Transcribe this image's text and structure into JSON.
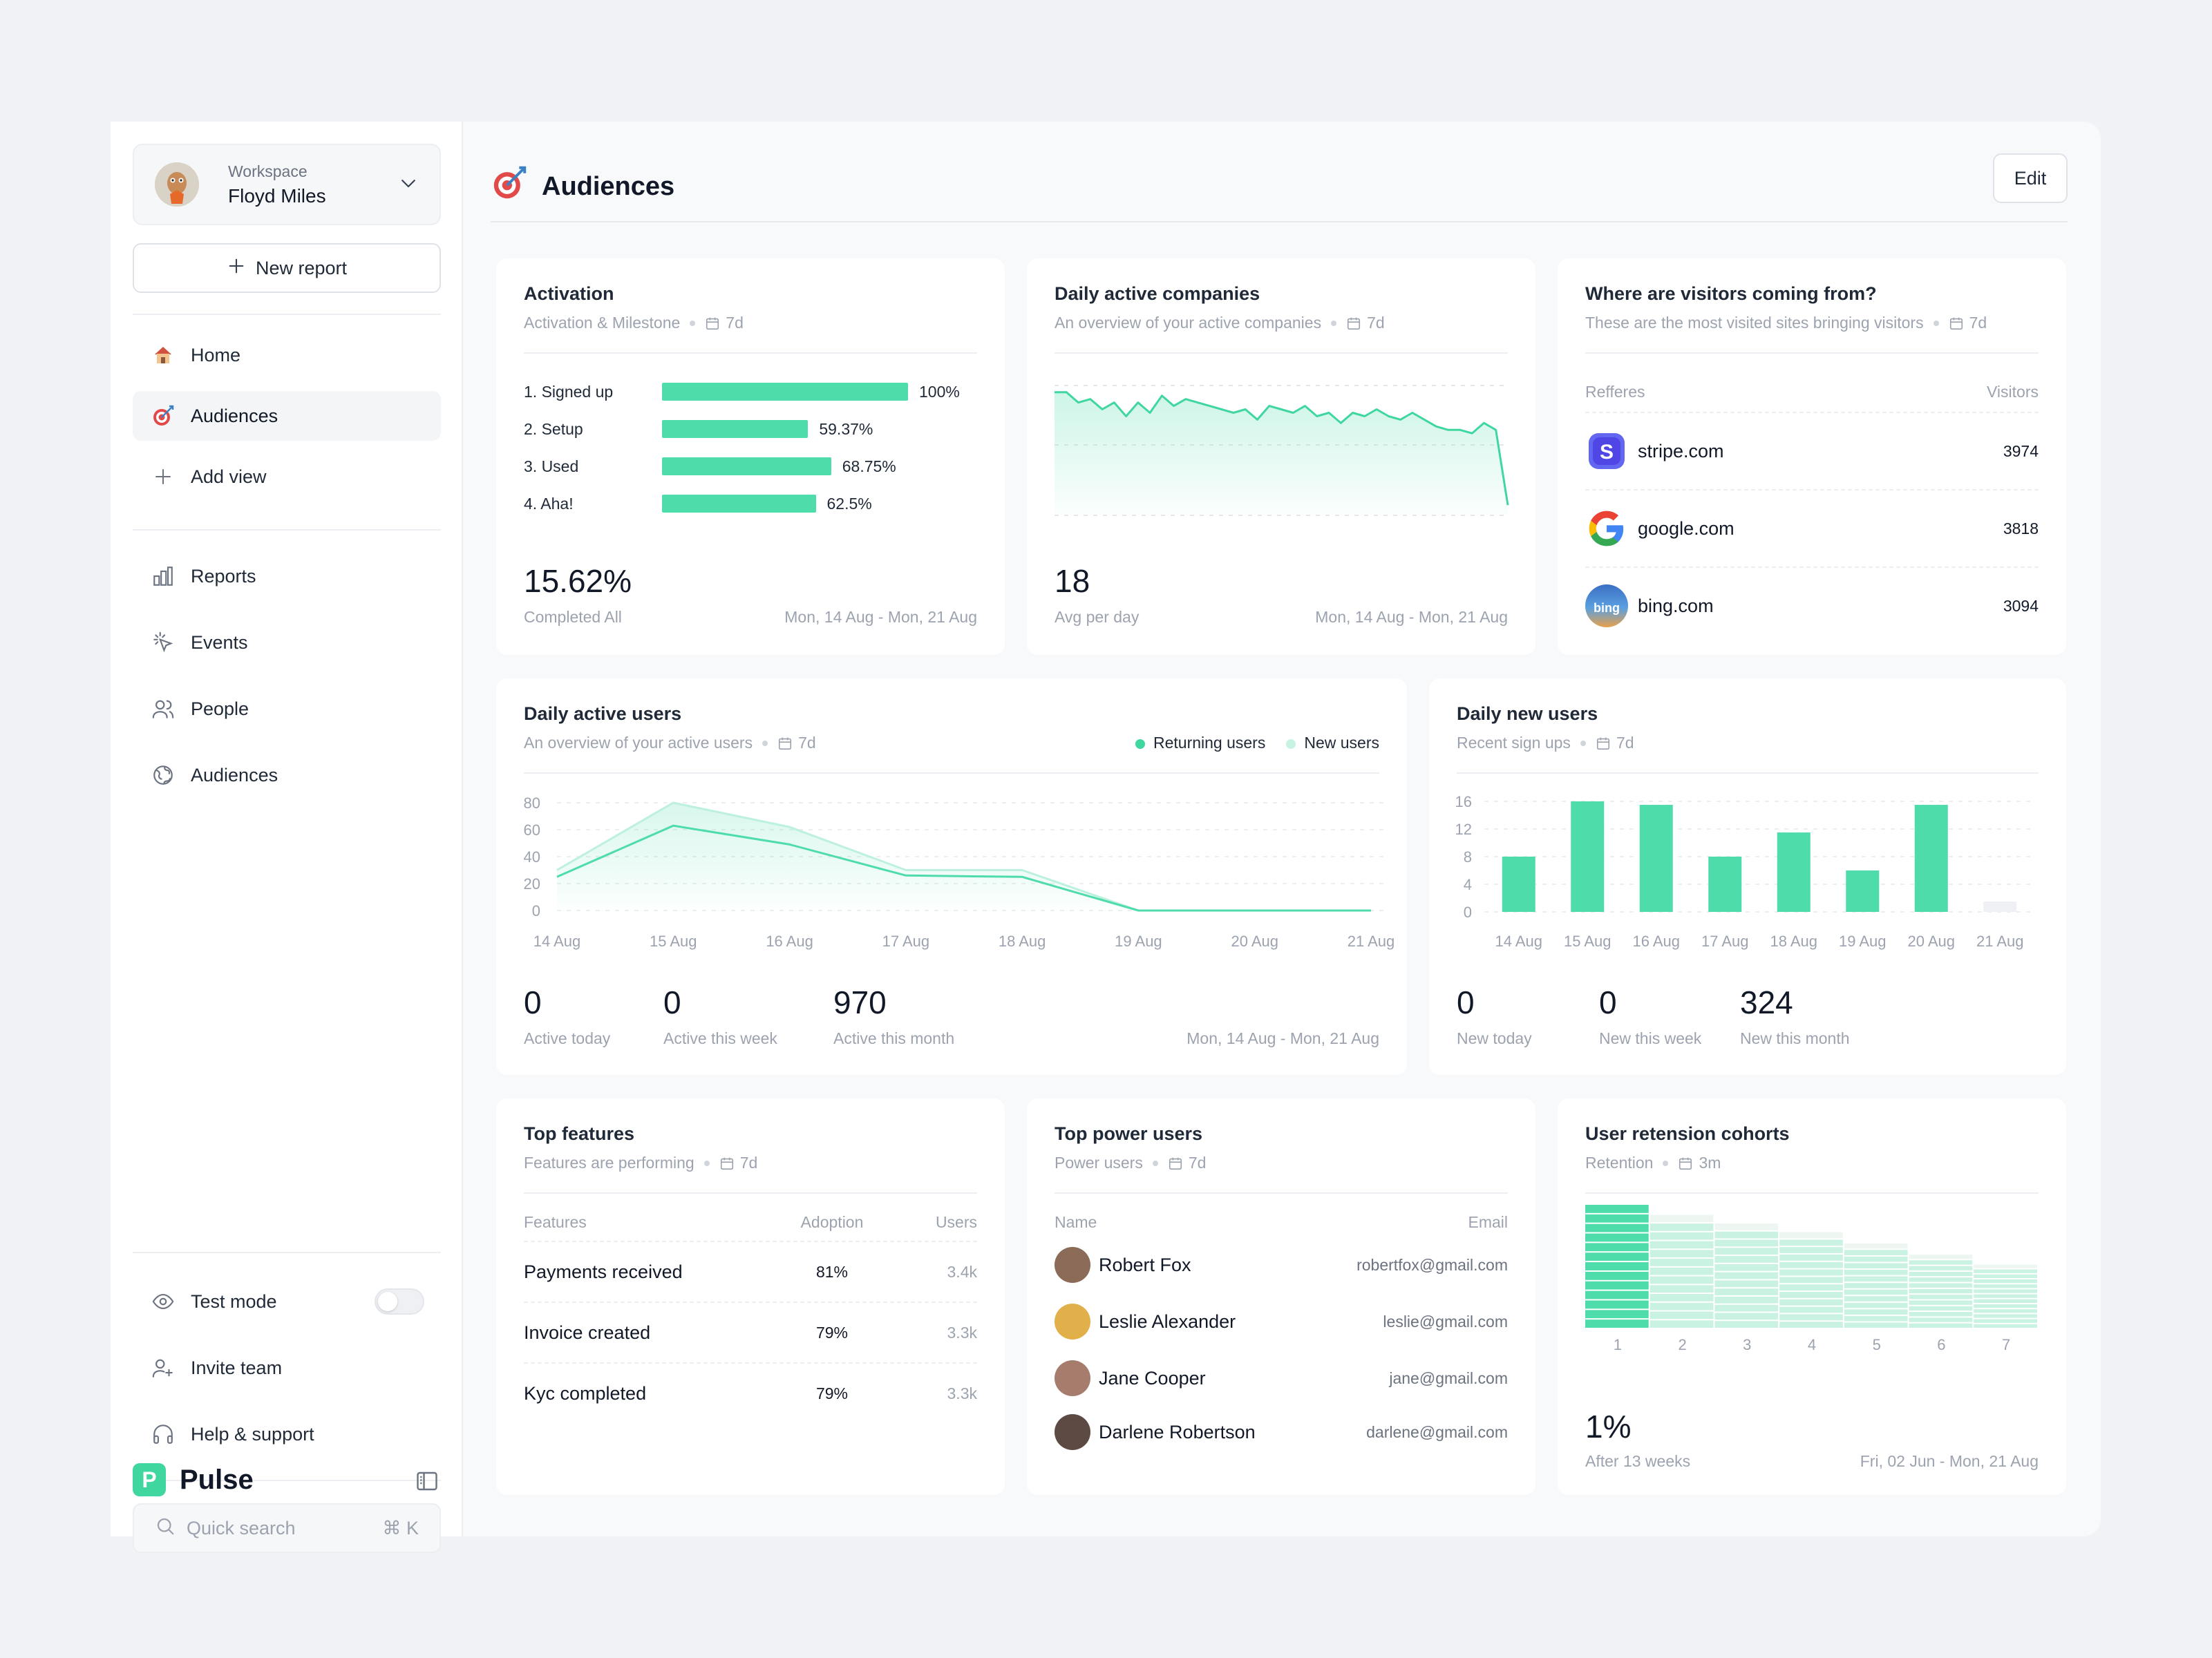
{
  "workspace": {
    "label": "Workspace",
    "name": "Floyd Miles"
  },
  "sidebar": {
    "new_report": "New report",
    "primary": [
      {
        "label": "Home",
        "icon": "home-icon"
      },
      {
        "label": "Audiences",
        "icon": "target-icon",
        "active": true
      },
      {
        "label": "Add view",
        "icon": "plus-icon"
      }
    ],
    "secondary": [
      {
        "label": "Reports",
        "icon": "bar-chart-icon"
      },
      {
        "label": "Events",
        "icon": "cursor-click-icon"
      },
      {
        "label": "People",
        "icon": "users-icon"
      },
      {
        "label": "Audiences",
        "icon": "globe-icon"
      }
    ],
    "footer": [
      {
        "label": "Test mode",
        "icon": "eye-icon"
      },
      {
        "label": "Invite team",
        "icon": "user-plus-icon"
      },
      {
        "label": "Help & support",
        "icon": "headphones-icon"
      }
    ],
    "search_placeholder": "Quick search",
    "search_shortcut": "⌘ K",
    "brand": "Pulse",
    "brand_letter": "P"
  },
  "header": {
    "title": "Audiences",
    "edit": "Edit"
  },
  "cards": {
    "activation": {
      "title": "Activation",
      "subtitle": "Activation & Milestone",
      "period": "7d",
      "steps": [
        {
          "label": "1.  Signed up",
          "value": 100,
          "text": "100%"
        },
        {
          "label": "2.  Setup",
          "value": 59.37,
          "text": "59.37%"
        },
        {
          "label": "3.  Used",
          "value": 68.75,
          "text": "68.75%"
        },
        {
          "label": "4.  Aha!",
          "value": 62.5,
          "text": "62.5%"
        }
      ],
      "big": "15.62%",
      "big_caption": "Completed All",
      "range": "Mon, 14 Aug - Mon, 21 Aug"
    },
    "companies": {
      "title": "Daily active companies",
      "subtitle": "An overview of your active companies",
      "period": "7d",
      "big": "18",
      "big_caption": "Avg per day",
      "range": "Mon, 14 Aug - Mon, 21 Aug"
    },
    "visitors": {
      "title": "Where are visitors coming from?",
      "subtitle": "These are the most visited sites bringing visitors",
      "period": "7d",
      "col_left": "Refferes",
      "col_right": "Visitors",
      "rows": [
        {
          "site": "stripe.com",
          "visitors": "3974",
          "icon": "stripe-logo-icon",
          "color": "#5b5bf5",
          "mark": "S"
        },
        {
          "site": "google.com",
          "visitors": "3818",
          "icon": "google-logo-icon",
          "color": "#ea4335",
          "mark": "G"
        },
        {
          "site": "bing.com",
          "visitors": "3094",
          "icon": "bing-logo-icon",
          "color": "#3b82c4",
          "mark": "bing"
        }
      ]
    },
    "dau": {
      "title": "Daily active users",
      "subtitle": "An overview of your active users",
      "period": "7d",
      "legend": [
        "Returning users",
        "New users"
      ],
      "stats": [
        {
          "value": "0",
          "label": "Active today"
        },
        {
          "value": "0",
          "label": "Active this week"
        },
        {
          "value": "970",
          "label": "Active this month"
        }
      ],
      "range": "Mon, 14 Aug - Mon, 21 Aug"
    },
    "dnu": {
      "title": "Daily new users",
      "subtitle": "Recent sign ups",
      "period": "7d",
      "stats": [
        {
          "value": "0",
          "label": "New today"
        },
        {
          "value": "0",
          "label": "New this week"
        },
        {
          "value": "324",
          "label": "New this month"
        }
      ]
    },
    "features": {
      "title": "Top features",
      "subtitle": "Features are performing",
      "period": "7d",
      "cols": [
        "Features",
        "Adoption",
        "Users"
      ],
      "rows": [
        {
          "name": "Payments received",
          "adoption": "81%",
          "users": "3.4k"
        },
        {
          "name": "Invoice created",
          "adoption": "79%",
          "users": "3.3k"
        },
        {
          "name": "Kyc completed",
          "adoption": "79%",
          "users": "3.3k"
        }
      ]
    },
    "power": {
      "title": "Top power users",
      "subtitle": "Power users",
      "period": "7d",
      "cols": [
        "Name",
        "Email"
      ],
      "rows": [
        {
          "name": "Robert Fox",
          "email": "robertfox@gmail.com",
          "color": "#8b6a57"
        },
        {
          "name": "Leslie Alexander",
          "email": "leslie@gmail.com",
          "color": "#e2b04a"
        },
        {
          "name": "Jane Cooper",
          "email": "jane@gmail.com",
          "color": "#a67c6d"
        },
        {
          "name": "Darlene Robertson",
          "email": "darlene@gmail.com",
          "color": "#5c4a42"
        }
      ]
    },
    "retention": {
      "title": "User retension cohorts",
      "subtitle": "Retention",
      "period": "3m",
      "big": "1%",
      "big_caption": "After 13 weeks",
      "range": "Fri, 02 Jun - Mon, 21 Aug"
    }
  },
  "chart_data": [
    {
      "type": "bar",
      "title": "Activation",
      "categories": [
        "Signed up",
        "Setup",
        "Used",
        "Aha!"
      ],
      "values": [
        100,
        59.37,
        68.75,
        62.5
      ],
      "ylabel": "%"
    },
    {
      "type": "area",
      "title": "Daily active companies",
      "values": [
        36,
        36,
        33,
        34,
        31,
        33,
        29,
        33,
        30,
        35,
        32,
        34,
        33,
        32,
        31,
        30,
        31,
        28,
        32,
        31,
        30,
        32,
        29,
        30,
        27,
        30,
        29,
        31,
        29,
        28,
        30,
        28,
        26,
        25,
        25,
        24,
        27,
        25,
        3
      ],
      "grid": true
    },
    {
      "type": "area",
      "title": "Daily active users",
      "categories": [
        "14 Aug",
        "15 Aug",
        "16 Aug",
        "17 Aug",
        "18 Aug",
        "19 Aug",
        "20 Aug",
        "21 Aug"
      ],
      "yticks": [
        0,
        20,
        40,
        60,
        80
      ],
      "ylim": [
        0,
        80
      ],
      "series": [
        {
          "name": "Returning users",
          "values": [
            25,
            63,
            49,
            26,
            25,
            0,
            0,
            0
          ],
          "color": "#4edcab"
        },
        {
          "name": "New users",
          "values": [
            30,
            80,
            62,
            30,
            30,
            0,
            0,
            0
          ],
          "color": "#bdf1dd"
        }
      ],
      "legend": "top-right",
      "grid": true
    },
    {
      "type": "bar",
      "title": "Daily new users",
      "categories": [
        "14 Aug",
        "15 Aug",
        "16 Aug",
        "17 Aug",
        "18 Aug",
        "19 Aug",
        "20 Aug",
        "21 Aug"
      ],
      "values": [
        8,
        16,
        15.5,
        8,
        11.5,
        6,
        15.5,
        1.5
      ],
      "yticks": [
        0,
        4,
        8,
        12,
        16
      ],
      "ylim": [
        0,
        16
      ],
      "grid": true
    },
    {
      "type": "heatmap",
      "title": "User retension cohorts",
      "categories": [
        "1",
        "2",
        "3",
        "4",
        "5",
        "6",
        "7"
      ],
      "values": [
        100,
        92,
        85,
        78,
        69,
        60,
        52
      ]
    }
  ]
}
